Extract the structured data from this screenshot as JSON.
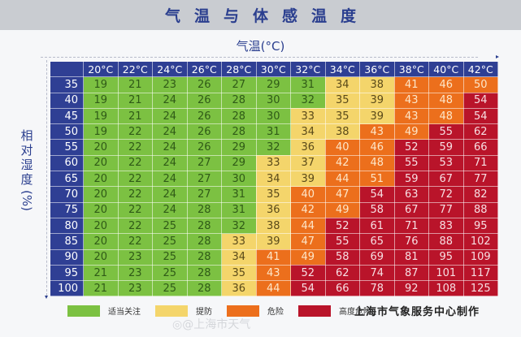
{
  "header": {
    "title": "气温与体感温度"
  },
  "x_axis": {
    "title": "气温(°C)"
  },
  "y_axis": {
    "title_chars": [
      "相",
      "对",
      "湿",
      "度"
    ],
    "unit": "(%)"
  },
  "colors": {
    "header_bg": "#2f3f94",
    "green": "#7cc142",
    "yellow": "#f4d56b",
    "orange": "#ec6f1c",
    "red": "#b9142a"
  },
  "legend": [
    {
      "label": "适当关注",
      "level": "g",
      "color": "#7cc142"
    },
    {
      "label": "提防",
      "level": "y",
      "color": "#f4d56b"
    },
    {
      "label": "危险",
      "level": "o",
      "color": "#ec6f1c"
    },
    {
      "label": "高度危险",
      "level": "r",
      "color": "#b9142a"
    }
  ],
  "credit": "上海市气象服务中心制作",
  "watermark": "@上海市天气",
  "chart_data": {
    "type": "heatmap",
    "title": "气温与体感温度",
    "xlabel": "气温(°C)",
    "ylabel": "相对湿度(%)",
    "x": [
      "20°C",
      "22°C",
      "24°C",
      "26°C",
      "28°C",
      "30°C",
      "32°C",
      "34°C",
      "36°C",
      "38°C",
      "40°C",
      "42°C"
    ],
    "y": [
      "35",
      "40",
      "45",
      "50",
      "55",
      "60",
      "65",
      "70",
      "75",
      "80",
      "85",
      "90",
      "95",
      "100"
    ],
    "values": [
      [
        19,
        21,
        23,
        26,
        27,
        29,
        31,
        34,
        38,
        41,
        46,
        50
      ],
      [
        19,
        21,
        24,
        26,
        28,
        30,
        32,
        35,
        39,
        43,
        48,
        54
      ],
      [
        19,
        21,
        24,
        26,
        28,
        30,
        33,
        35,
        39,
        43,
        48,
        54
      ],
      [
        19,
        22,
        24,
        26,
        28,
        31,
        34,
        38,
        43,
        49,
        55,
        62
      ],
      [
        20,
        22,
        24,
        26,
        29,
        32,
        36,
        40,
        46,
        52,
        59,
        66
      ],
      [
        20,
        22,
        24,
        27,
        29,
        33,
        37,
        42,
        48,
        55,
        53,
        71
      ],
      [
        20,
        22,
        24,
        27,
        30,
        34,
        39,
        44,
        51,
        59,
        67,
        77
      ],
      [
        20,
        22,
        24,
        27,
        31,
        35,
        40,
        47,
        54,
        63,
        72,
        82
      ],
      [
        20,
        22,
        24,
        28,
        31,
        36,
        42,
        49,
        58,
        67,
        77,
        88
      ],
      [
        20,
        22,
        25,
        28,
        32,
        38,
        44,
        52,
        61,
        71,
        83,
        95
      ],
      [
        20,
        22,
        25,
        28,
        33,
        39,
        47,
        55,
        65,
        76,
        88,
        102
      ],
      [
        20,
        23,
        25,
        28,
        34,
        41,
        49,
        58,
        69,
        81,
        95,
        109
      ],
      [
        21,
        23,
        25,
        28,
        35,
        43,
        52,
        62,
        74,
        87,
        101,
        117
      ],
      [
        21,
        23,
        25,
        28,
        36,
        44,
        54,
        66,
        78,
        92,
        108,
        125
      ]
    ],
    "levels": [
      [
        "g",
        "g",
        "g",
        "g",
        "g",
        "g",
        "g",
        "y",
        "y",
        "o",
        "o",
        "o"
      ],
      [
        "g",
        "g",
        "g",
        "g",
        "g",
        "g",
        "g",
        "y",
        "y",
        "o",
        "o",
        "r"
      ],
      [
        "g",
        "g",
        "g",
        "g",
        "g",
        "g",
        "y",
        "y",
        "y",
        "o",
        "o",
        "r"
      ],
      [
        "g",
        "g",
        "g",
        "g",
        "g",
        "g",
        "y",
        "y",
        "o",
        "o",
        "r",
        "r"
      ],
      [
        "g",
        "g",
        "g",
        "g",
        "g",
        "g",
        "y",
        "o",
        "o",
        "r",
        "r",
        "r"
      ],
      [
        "g",
        "g",
        "g",
        "g",
        "g",
        "y",
        "y",
        "o",
        "o",
        "r",
        "r",
        "r"
      ],
      [
        "g",
        "g",
        "g",
        "g",
        "g",
        "y",
        "y",
        "o",
        "o",
        "r",
        "r",
        "r"
      ],
      [
        "g",
        "g",
        "g",
        "g",
        "g",
        "y",
        "o",
        "o",
        "r",
        "r",
        "r",
        "r"
      ],
      [
        "g",
        "g",
        "g",
        "g",
        "g",
        "y",
        "o",
        "o",
        "r",
        "r",
        "r",
        "r"
      ],
      [
        "g",
        "g",
        "g",
        "g",
        "g",
        "y",
        "o",
        "r",
        "r",
        "r",
        "r",
        "r"
      ],
      [
        "g",
        "g",
        "g",
        "g",
        "y",
        "y",
        "o",
        "r",
        "r",
        "r",
        "r",
        "r"
      ],
      [
        "g",
        "g",
        "g",
        "g",
        "y",
        "o",
        "o",
        "r",
        "r",
        "r",
        "r",
        "r"
      ],
      [
        "g",
        "g",
        "g",
        "g",
        "y",
        "o",
        "r",
        "r",
        "r",
        "r",
        "r",
        "r"
      ],
      [
        "g",
        "g",
        "g",
        "g",
        "y",
        "o",
        "r",
        "r",
        "r",
        "r",
        "r",
        "r"
      ]
    ],
    "legend_levels": {
      "g": "适当关注",
      "y": "提防",
      "o": "危险",
      "r": "高度危险"
    }
  }
}
